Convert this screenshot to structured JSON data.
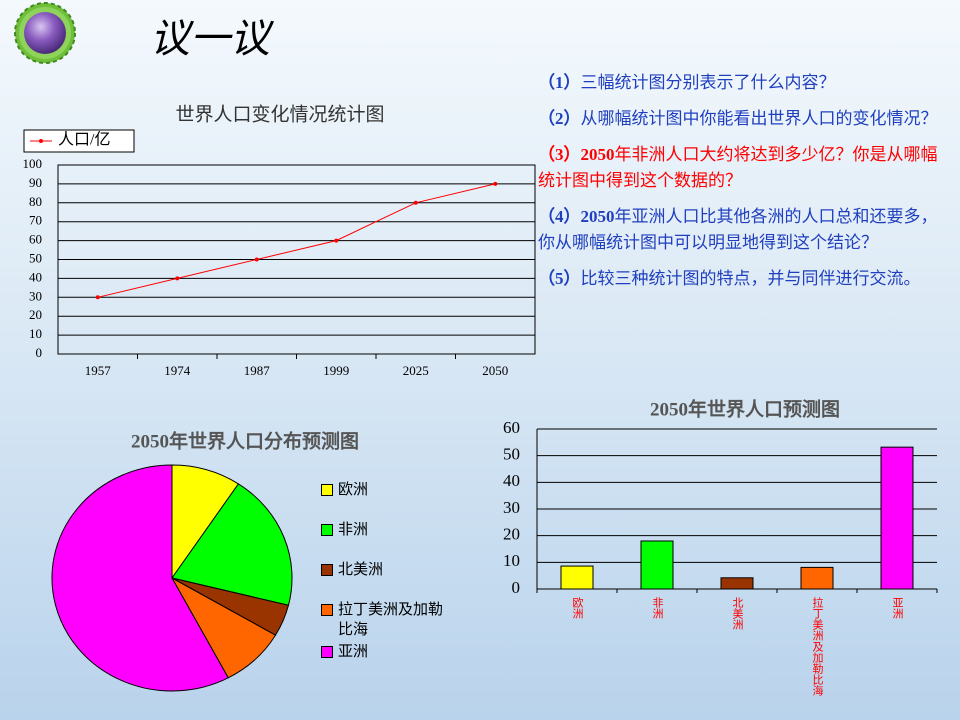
{
  "title": "议一议",
  "questions": [
    {
      "label": "（1）",
      "text": "三幅统计图分别表示了什么内容？"
    },
    {
      "label": "（2）",
      "text": "从哪幅统计图中你能看出世界人口的变化情况？"
    },
    {
      "label": "（3）2050",
      "text": "年非洲人口大约将达到多少亿？你是从哪幅统计图中得到这个数据的？",
      "color": "#ff0000"
    },
    {
      "label": "（4）2050",
      "text": "年亚洲人口比其他各洲的人口总和还要多，你从哪幅统计图中可以明显地得到这个结论？"
    },
    {
      "label": "（5）",
      "text": "比较三种统计图的特点，并与同伴进行交流。"
    }
  ],
  "chart_data": [
    {
      "type": "line",
      "title": "世界人口变化情况统计图",
      "categories": [
        "1957",
        "1974",
        "1987",
        "1999",
        "2025",
        "2050"
      ],
      "series": [
        {
          "name": "人口/亿",
          "color": "#ff0000",
          "values": [
            30,
            40,
            50,
            60,
            80,
            90
          ]
        }
      ],
      "ylim": [
        0,
        100
      ],
      "yticks": [
        0,
        10,
        20,
        30,
        40,
        50,
        60,
        70,
        80,
        90,
        100
      ],
      "grid": true
    },
    {
      "type": "pie",
      "title": "2050年世界人口分布预测图",
      "categories": [
        "欧洲",
        "非洲",
        "北美洲",
        "拉丁美洲及加勒比海",
        "亚洲"
      ],
      "values": [
        8.6,
        18,
        4.2,
        8.1,
        53.2
      ],
      "colors": [
        "#ffff00",
        "#00ff00",
        "#993300",
        "#ff6600",
        "#ff00ff"
      ]
    },
    {
      "type": "bar",
      "title": "2050年世界人口预测图",
      "categories": [
        "欧洲",
        "非洲",
        "北美洲",
        "拉丁美洲及加勒比海",
        "亚洲"
      ],
      "values": [
        8.6,
        18,
        4.2,
        8.1,
        53.2
      ],
      "colors": [
        "#ffff00",
        "#00ff00",
        "#993300",
        "#ff6600",
        "#ff00ff"
      ],
      "label_color": "#ff0000",
      "ylim": [
        0,
        60
      ],
      "yticks": [
        0,
        10,
        20,
        30,
        40,
        50,
        60
      ],
      "grid": true
    }
  ]
}
